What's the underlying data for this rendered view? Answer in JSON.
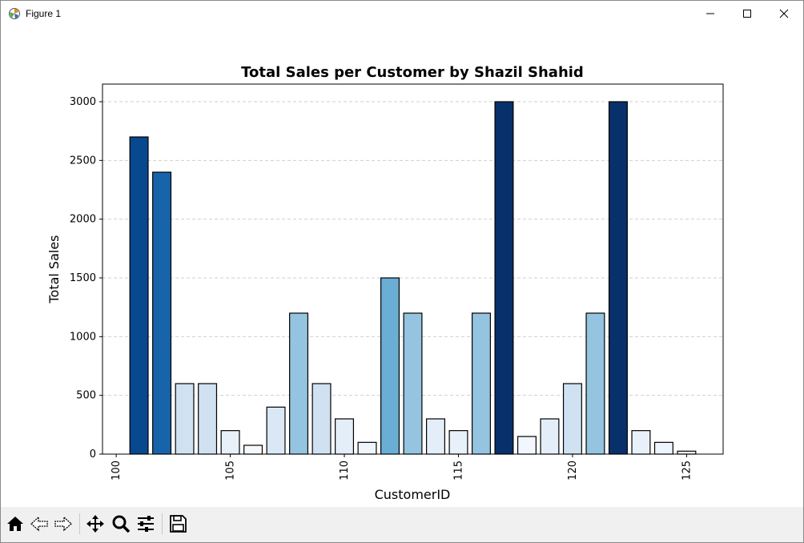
{
  "window": {
    "title": "Figure 1"
  },
  "toolbar": {
    "buttons": [
      {
        "name": "home-icon"
      },
      {
        "name": "back-icon"
      },
      {
        "name": "forward-icon"
      },
      {
        "name": "pan-icon"
      },
      {
        "name": "zoom-icon"
      },
      {
        "name": "configure-subplots-icon"
      },
      {
        "name": "save-icon"
      }
    ]
  },
  "chart_data": {
    "type": "bar",
    "title": "Total Sales per Customer by Shazil Shahid",
    "xlabel": "CustomerID",
    "ylabel": "Total Sales",
    "x": [
      101,
      102,
      103,
      104,
      105,
      106,
      107,
      108,
      109,
      110,
      111,
      112,
      113,
      114,
      115,
      116,
      117,
      118,
      119,
      120,
      121,
      122,
      123,
      124,
      125
    ],
    "values": [
      2700,
      2400,
      600,
      600,
      200,
      75,
      400,
      1200,
      600,
      300,
      100,
      1500,
      1200,
      300,
      200,
      1200,
      3000,
      150,
      300,
      600,
      1200,
      3000,
      200,
      100,
      25
    ],
    "colors": [
      "#08488e",
      "#1764ab",
      "#d0e1f2",
      "#d0e1f2",
      "#e8f1fa",
      "#f4f9fe",
      "#dae8f6",
      "#94c4df",
      "#d0e1f2",
      "#e3eef9",
      "#eef5fc",
      "#6aaed6",
      "#94c4df",
      "#e3eef9",
      "#e8f1fa",
      "#94c4df",
      "#08306b",
      "#f1f7fd",
      "#e3eef9",
      "#d0e1f2",
      "#94c4df",
      "#08306b",
      "#e8f1fa",
      "#eef5fc",
      "#f6faff"
    ],
    "xlim": [
      99.4,
      126.6
    ],
    "ylim": [
      0,
      3150
    ],
    "xticks": [
      100,
      105,
      110,
      115,
      120,
      125
    ],
    "yticks": [
      0,
      500,
      1000,
      1500,
      2000,
      2500,
      3000
    ],
    "grid": "y-dashed",
    "tick_rotation": 90
  }
}
